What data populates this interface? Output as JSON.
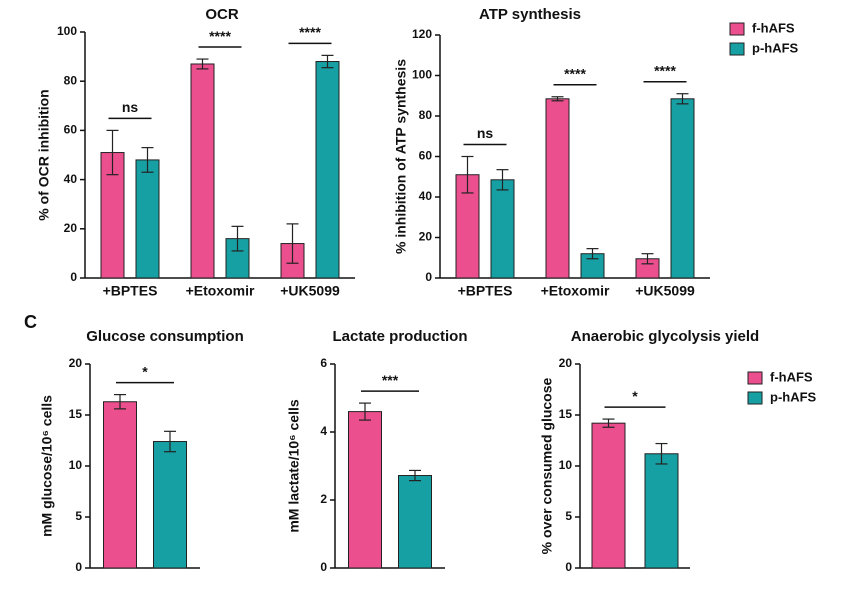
{
  "panel_label": "C",
  "chart_data": [
    {
      "type": "bar",
      "title": "OCR",
      "ylabel": "% of OCR inhibition",
      "categories": [
        "+BPTES",
        "+Etoxomir",
        "+UK5099"
      ],
      "series": [
        {
          "color": "#ec4f8e",
          "values": [
            51,
            87,
            14
          ],
          "errors": [
            9,
            2,
            8
          ]
        },
        {
          "color": "#17a0a3",
          "values": [
            48,
            16,
            88
          ],
          "errors": [
            5,
            5,
            2.5
          ]
        }
      ],
      "significance": [
        "ns",
        "****",
        "****"
      ],
      "ylim": [
        0,
        100
      ],
      "yticks": [
        0,
        20,
        40,
        60,
        80,
        100
      ]
    },
    {
      "type": "bar",
      "title": "ATP synthesis",
      "ylabel": "% inhibition of ATP synthesis",
      "categories": [
        "+BPTES",
        "+Etoxomir",
        "+UK5099"
      ],
      "series": [
        {
          "name": "f-hAFS",
          "color": "#ec4f8e",
          "values": [
            51,
            88.5,
            9.5
          ],
          "errors": [
            9,
            1,
            2.5
          ]
        },
        {
          "name": "p-hAFS",
          "color": "#17a0a3",
          "values": [
            48.5,
            12,
            88.5
          ],
          "errors": [
            5,
            2.5,
            2.5
          ]
        }
      ],
      "significance": [
        "ns",
        "****",
        "****"
      ],
      "ylim": [
        0,
        120
      ],
      "yticks": [
        0,
        20,
        40,
        60,
        80,
        100,
        120
      ],
      "legend": "right"
    },
    {
      "type": "bar",
      "title": "Glucose consumption",
      "ylabel": "mM glucose/10⁶ cells",
      "categories": [
        null
      ],
      "series": [
        {
          "color": "#ec4f8e",
          "values": [
            16.3
          ],
          "errors": [
            0.7
          ]
        },
        {
          "color": "#17a0a3",
          "values": [
            12.4
          ],
          "errors": [
            1.0
          ]
        }
      ],
      "significance": [
        "*"
      ],
      "ylim": [
        0,
        20
      ],
      "yticks": [
        0,
        5,
        10,
        15,
        20
      ]
    },
    {
      "type": "bar",
      "title": "Lactate production",
      "ylabel": "mM lactate/10⁶ cells",
      "categories": [
        null
      ],
      "series": [
        {
          "color": "#ec4f8e",
          "values": [
            4.6
          ],
          "errors": [
            0.25
          ]
        },
        {
          "color": "#17a0a3",
          "values": [
            2.72
          ],
          "errors": [
            0.15
          ]
        }
      ],
      "significance": [
        "***"
      ],
      "ylim": [
        0,
        6
      ],
      "yticks": [
        0,
        2,
        4,
        6
      ]
    },
    {
      "type": "bar",
      "title": "Anaerobic glycolysis yield",
      "ylabel": "% over consumed glucose",
      "categories": [
        null
      ],
      "series": [
        {
          "name": "f-hAFS",
          "color": "#ec4f8e",
          "values": [
            14.2
          ],
          "errors": [
            0.4
          ]
        },
        {
          "name": "p-hAFS",
          "color": "#17a0a3",
          "values": [
            11.2
          ],
          "errors": [
            1.0
          ]
        }
      ],
      "significance": [
        "*"
      ],
      "ylim": [
        0,
        20
      ],
      "yticks": [
        0,
        5,
        10,
        15,
        20
      ],
      "legend": "right"
    }
  ]
}
